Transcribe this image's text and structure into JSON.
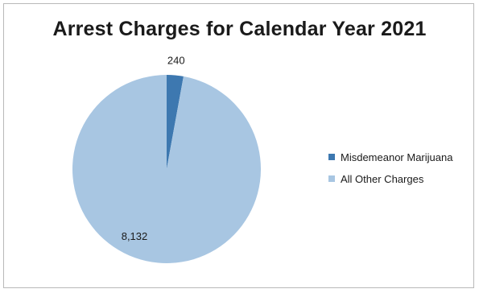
{
  "chart_data": {
    "type": "pie",
    "title": "Arrest Charges for Calendar Year 2021",
    "categories": [
      "Misdemeanor Marijuana",
      "All Other Charges"
    ],
    "values": [
      240,
      8132
    ],
    "data_labels": [
      "240",
      "8,132"
    ],
    "colors": [
      "#3d78b0",
      "#a8c6e2"
    ],
    "legend_position": "right",
    "start_angle": "top, clockwise"
  }
}
